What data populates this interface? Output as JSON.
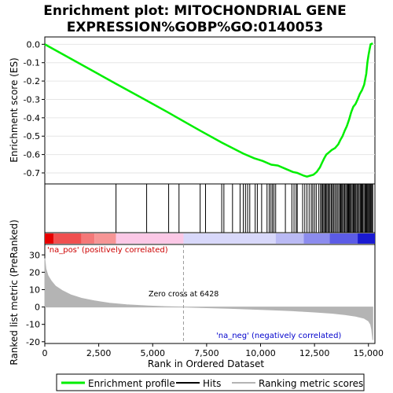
{
  "title_line1": "Enrichment plot: MITOCHONDRIAL GENE",
  "title_line2": "EXPRESSION%GOBP%GO:0140053",
  "chart_data": [
    {
      "type": "line",
      "name": "enrichment",
      "ylabel": "Enrichment score (ES)",
      "xlim": [
        0,
        15300
      ],
      "ylim": [
        -0.76,
        0.04
      ],
      "yticks": [
        0.0,
        -0.1,
        -0.2,
        -0.3,
        -0.4,
        -0.5,
        -0.6,
        -0.7
      ],
      "ytick_labels": [
        "0.0",
        "-0.1",
        "-0.2",
        "-0.3",
        "-0.4",
        "-0.5",
        "-0.6",
        "-0.7"
      ],
      "grid": true,
      "series": [
        {
          "name": "Enrichment profile",
          "color": "#00ee00",
          "x": [
            0,
            3300,
            4700,
            5700,
            6300,
            7200,
            8200,
            8700,
            9200,
            9700,
            10100,
            10500,
            10800,
            11200,
            11500,
            11700,
            12000,
            12150,
            12300,
            12450,
            12600,
            12750,
            12850,
            12950,
            13050,
            13150,
            13300,
            13450,
            13600,
            13700,
            13800,
            13900,
            14000,
            14100,
            14200,
            14300,
            14400,
            14500,
            14600,
            14700,
            14800,
            14900,
            14950,
            15000,
            15050,
            15100,
            15200
          ],
          "y": [
            0.0,
            -0.215,
            -0.305,
            -0.37,
            -0.41,
            -0.47,
            -0.535,
            -0.565,
            -0.595,
            -0.62,
            -0.635,
            -0.655,
            -0.66,
            -0.68,
            -0.695,
            -0.7,
            -0.715,
            -0.72,
            -0.715,
            -0.71,
            -0.695,
            -0.67,
            -0.645,
            -0.62,
            -0.6,
            -0.59,
            -0.575,
            -0.565,
            -0.545,
            -0.52,
            -0.5,
            -0.47,
            -0.445,
            -0.41,
            -0.37,
            -0.34,
            -0.325,
            -0.3,
            -0.27,
            -0.25,
            -0.22,
            -0.16,
            -0.1,
            -0.06,
            -0.03,
            0.0,
            0.005
          ]
        }
      ]
    },
    {
      "type": "scatter",
      "name": "hits",
      "xlim": [
        0,
        15300
      ],
      "hits": [
        3300,
        4720,
        5740,
        6220,
        7200,
        7450,
        8200,
        8300,
        8700,
        9050,
        9200,
        9300,
        9400,
        9500,
        9750,
        9850,
        10050,
        10300,
        10400,
        10480,
        10550,
        10620,
        10700,
        11150,
        11450,
        11550,
        11650,
        11700,
        11950,
        12050,
        12150,
        12250,
        12350,
        12420,
        12500,
        12580,
        12700,
        12780,
        12830,
        12880,
        12930,
        12980,
        13020,
        13070,
        13120,
        13170,
        13220,
        13280,
        13330,
        13380,
        13440,
        13500,
        13560,
        13620,
        13680,
        13720,
        13760,
        13800,
        13850,
        13900,
        13950,
        14000,
        14040,
        14080,
        14120,
        14160,
        14200,
        14250,
        14300,
        14340,
        14380,
        14420,
        14470,
        14520,
        14570,
        14620,
        14660,
        14700,
        14740,
        14790,
        14840,
        14880,
        14920,
        14960,
        15000,
        15040,
        15080,
        15120,
        15160,
        15200
      ]
    },
    {
      "type": "heatmap",
      "name": "ranking-colorbar",
      "xlim": [
        0,
        15300
      ],
      "label_pos": "'na_pos' (positively correlated)",
      "label_neg": "'na_neg' (negatively correlated)",
      "zero_cross_label": "Zero cross at 6428",
      "zero_cross": 6428,
      "segments": [
        {
          "x0": 0,
          "x1": 400,
          "color": "#e60000"
        },
        {
          "x0": 400,
          "x1": 1700,
          "color": "#f05050"
        },
        {
          "x0": 1700,
          "x1": 2300,
          "color": "#f47878"
        },
        {
          "x0": 2300,
          "x1": 3300,
          "color": "#f69595"
        },
        {
          "x0": 3300,
          "x1": 6428,
          "color": "#fbc8e6"
        },
        {
          "x0": 6428,
          "x1": 10700,
          "color": "#d8d8fa"
        },
        {
          "x0": 10700,
          "x1": 12000,
          "color": "#babaf4"
        },
        {
          "x0": 12000,
          "x1": 13200,
          "color": "#8c8cee"
        },
        {
          "x0": 13200,
          "x1": 14500,
          "color": "#5c5ce6"
        },
        {
          "x0": 14500,
          "x1": 15300,
          "color": "#1a1ad2"
        }
      ]
    },
    {
      "type": "area",
      "name": "ranked-metric",
      "xlabel": "Rank in Ordered Dataset",
      "ylabel": "Ranked list metric (PreRanked)",
      "xlim": [
        0,
        15300
      ],
      "ylim": [
        -21,
        36
      ],
      "xticks": [
        0,
        2500,
        5000,
        7500,
        10000,
        12500,
        15000
      ],
      "xtick_labels": [
        "0",
        "2,500",
        "5,000",
        "7,500",
        "10,000",
        "12,500",
        "15,000"
      ],
      "yticks": [
        30,
        20,
        10,
        0,
        -10,
        -20
      ],
      "ytick_labels": [
        "30",
        "20",
        "10",
        "0",
        "-10",
        "-20"
      ],
      "fill_color": "#b4b4b4",
      "x": [
        0,
        50,
        150,
        300,
        500,
        800,
        1200,
        1700,
        2300,
        3000,
        3800,
        4800,
        5600,
        6428,
        7500,
        8500,
        9500,
        10500,
        11500,
        12500,
        13300,
        13900,
        14400,
        14800,
        15000,
        15100,
        15150,
        15200
      ],
      "y": [
        28,
        22,
        18,
        15,
        12,
        9.5,
        7,
        5,
        3.5,
        2.2,
        1.3,
        0.6,
        0.2,
        0,
        -0.4,
        -0.8,
        -1.2,
        -1.7,
        -2.2,
        -2.9,
        -3.6,
        -4.4,
        -5.3,
        -6.5,
        -8,
        -10,
        -13,
        -19
      ]
    }
  ],
  "legend": {
    "items": [
      {
        "label": "Enrichment profile",
        "color": "#00ee00"
      },
      {
        "label": "Hits",
        "color": "#000000"
      },
      {
        "label": "Ranking metric scores",
        "color": "#b4b4b4"
      }
    ]
  }
}
